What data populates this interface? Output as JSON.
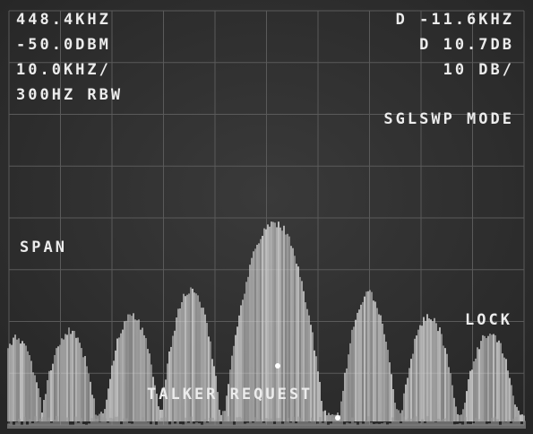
{
  "readout": {
    "center_frequency": "448.4KHZ",
    "reference_level": "-50.0DBM",
    "span_per_division": "10.0KHZ/",
    "resolution_bandwidth": "300HZ RBW",
    "delta_frequency": "D -11.6KHZ",
    "delta_level": "D 10.7DB",
    "scale": "10 DB/",
    "sweep_mode": "SGLSWP MODE",
    "span_label": "SPAN",
    "lock_label": "LOCK",
    "talker_request": "TALKER REQUEST"
  }
}
